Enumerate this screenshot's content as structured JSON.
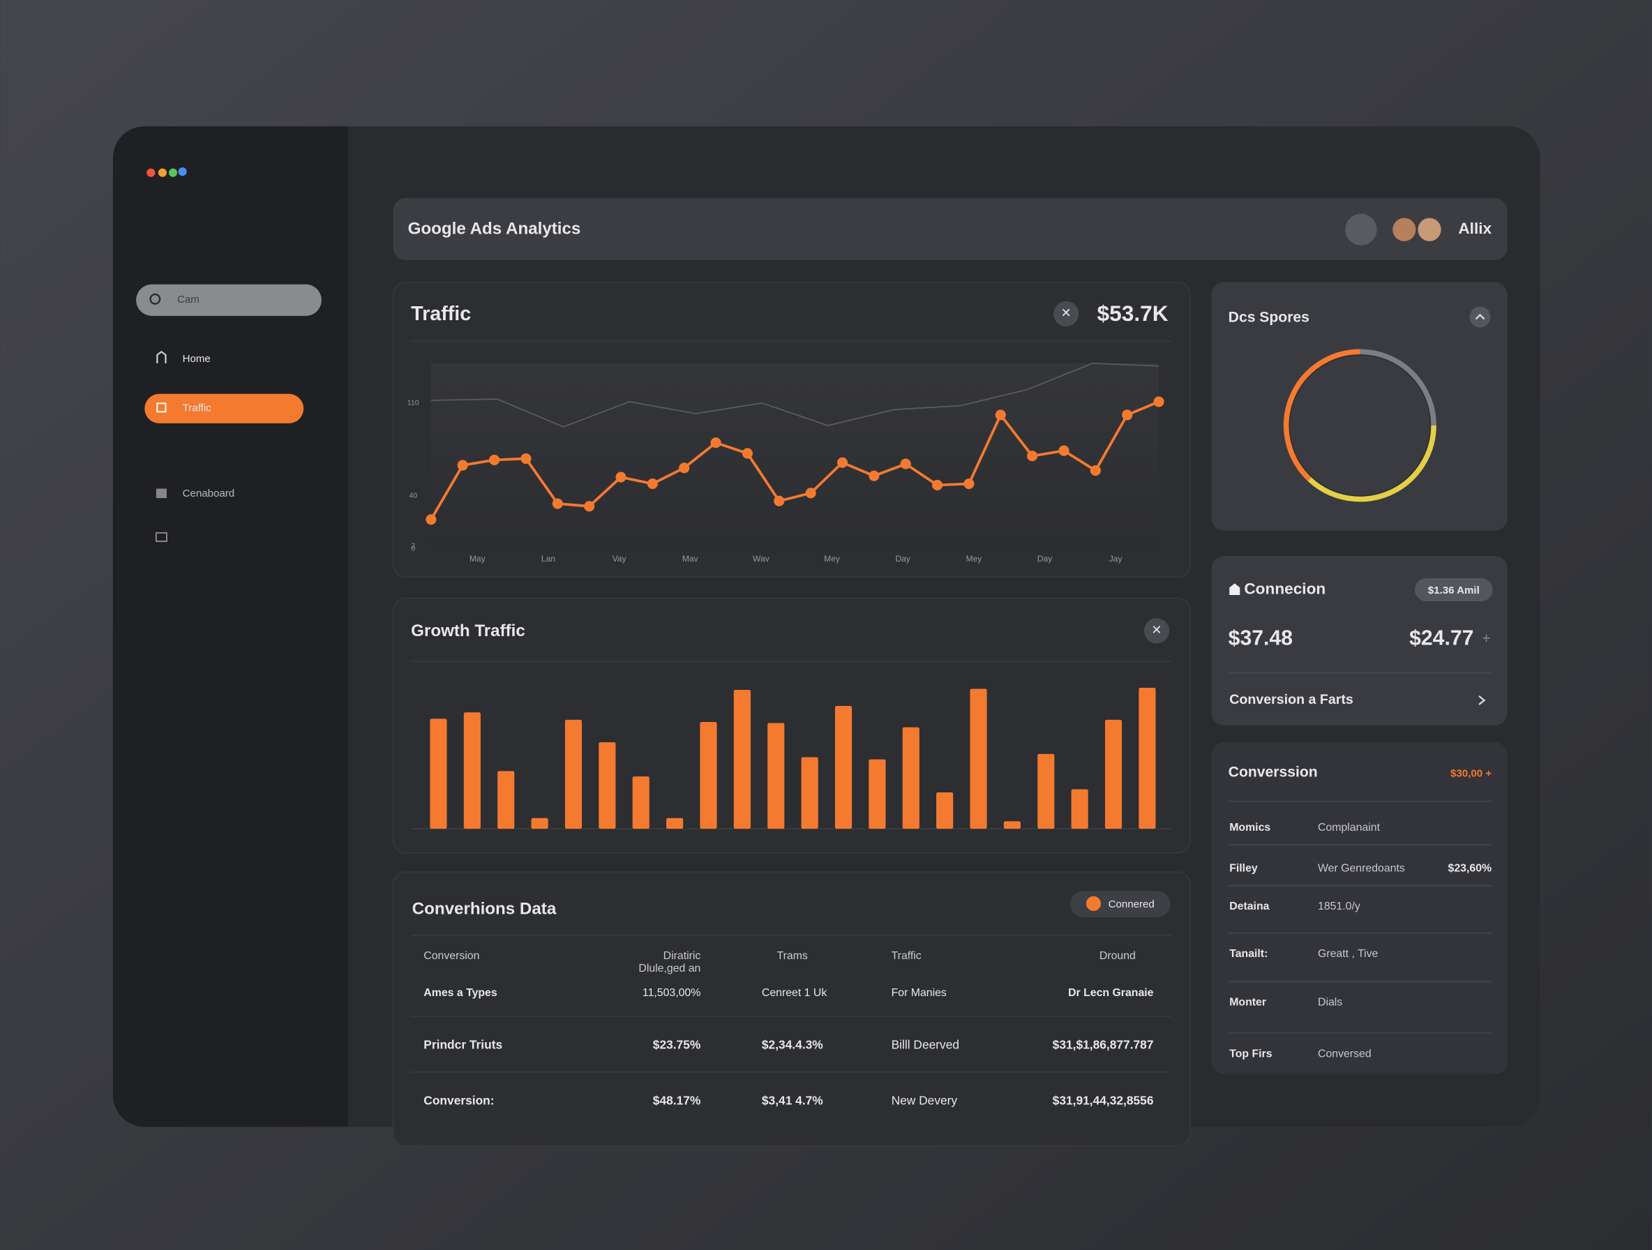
{
  "sidebar": {
    "search": "Cam",
    "nav": [
      "Home",
      "Traffic",
      "Cenaboard"
    ]
  },
  "header": {
    "title": "Google Ads Analytics",
    "user": "Allix"
  },
  "traffic": {
    "title": "Traffic",
    "amount": "$53.7K",
    "chart": {
      "type": "line",
      "ylim": [
        0,
        140
      ],
      "yticks": [
        0,
        2,
        40,
        110
      ],
      "xlabels": [
        "May",
        "Lan",
        "Vay",
        "Mav",
        "Wav",
        "Mey",
        "Day",
        "Mey",
        "Day",
        "Jay"
      ],
      "series": [
        {
          "color": "#5a5b60",
          "values": [
            112,
            113,
            92,
            111,
            102,
            110,
            93,
            105,
            108,
            120,
            140,
            138
          ]
        },
        {
          "color": "#f47a30",
          "values": [
            22,
            63,
            67,
            68,
            34,
            32,
            54,
            49,
            61,
            80,
            72,
            36,
            42,
            65,
            55,
            64,
            48,
            49,
            101,
            70,
            74,
            59,
            101,
            111
          ]
        }
      ]
    }
  },
  "growth": {
    "title": "Growth Traffic",
    "chart": {
      "type": "bar",
      "color": "#f47a30",
      "ylim": [
        0,
        140
      ],
      "values": [
        103,
        109,
        54,
        10,
        102,
        81,
        49,
        10,
        100,
        130,
        99,
        67,
        115,
        65,
        95,
        34,
        131,
        7,
        70,
        37,
        102,
        132
      ]
    }
  },
  "table": {
    "title": "Converhions Data",
    "badge": "Connered",
    "header": [
      "Conversion",
      [
        "Diratiric",
        "Dlule,ged an"
      ],
      "Trams",
      "Traffic",
      "Dround"
    ],
    "rows": [
      [
        "Ames a Types",
        "11,503,00%",
        "Cenreet 1 Uk",
        "For Manies",
        "Dr Lecn Granaie"
      ],
      [
        "Prindcr Triuts",
        "$23.75%",
        "$2,34.4.3%",
        "Billl Deerved",
        "$31,$1,86,877.787"
      ],
      [
        "Conversion:",
        "$48.17%",
        "$3,41 4.7%",
        "New Devery",
        "$31,91,44,32,8556"
      ]
    ]
  },
  "donut": {
    "title": "Dcs Spores",
    "chart": {
      "type": "pie",
      "values": [
        25,
        37,
        38
      ],
      "colors": [
        "#7d7e83",
        "#e3d048",
        "#f47a30"
      ]
    }
  },
  "connection": {
    "title": "Connecion",
    "badge": "$1.36  Amil",
    "value1": "$37.48",
    "value2": "$24.77",
    "link": "Conversion a Farts"
  },
  "conversion": {
    "title": "Converssion",
    "badge": "$30,00 +",
    "rows": [
      [
        "Momics",
        "Complanaint"
      ],
      [
        "Filley",
        "Wer Genredoants",
        "$23,60%"
      ],
      [
        "Detaina",
        "1851.0/y"
      ],
      [
        "Tanailt:",
        "Greatt , Tive"
      ],
      [
        "Monter",
        "Dials"
      ],
      [
        "Top Firs",
        "Conversed"
      ]
    ]
  }
}
